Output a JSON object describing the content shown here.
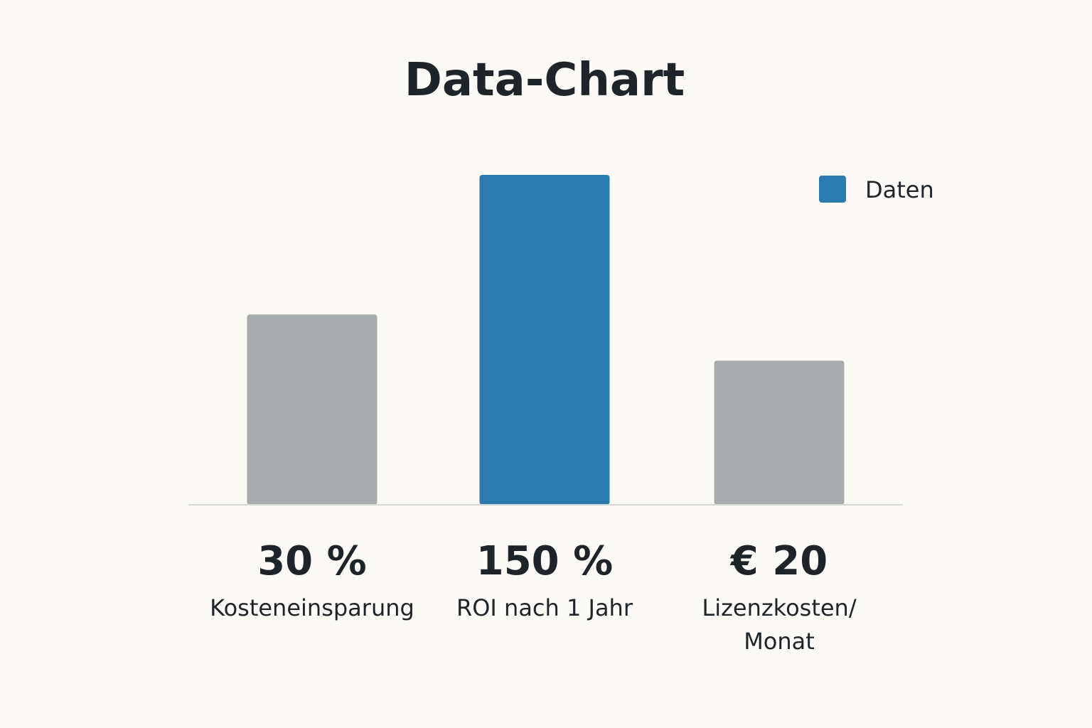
{
  "chart_data": {
    "type": "bar",
    "title": "Data-Chart",
    "categories": [
      "Kosteneinsparung",
      "ROI nach 1 Jahr",
      "Lizenzkosten/ Monat"
    ],
    "category_lines": [
      [
        "Kosteneinsparung"
      ],
      [
        "ROI nach 1 Jahr"
      ],
      [
        "Lizenzkosten/",
        "Monat"
      ]
    ],
    "value_labels": [
      "30 %",
      "150 %",
      "€ 20"
    ],
    "series": [
      {
        "name": "Daten",
        "values": [
          30,
          150,
          20
        ]
      }
    ],
    "bar_fill_levels": [
      0.577,
      1.0,
      0.437
    ],
    "highlight_index": 1,
    "legend_position": "top-right",
    "xlabel": "",
    "ylabel": "",
    "grid": false,
    "colors": {
      "highlight": "#2b7bb0",
      "muted": "#a9acaf",
      "baseline": "#d7d7d4",
      "text": "#1f2428",
      "background": "#fbfaf6"
    }
  }
}
